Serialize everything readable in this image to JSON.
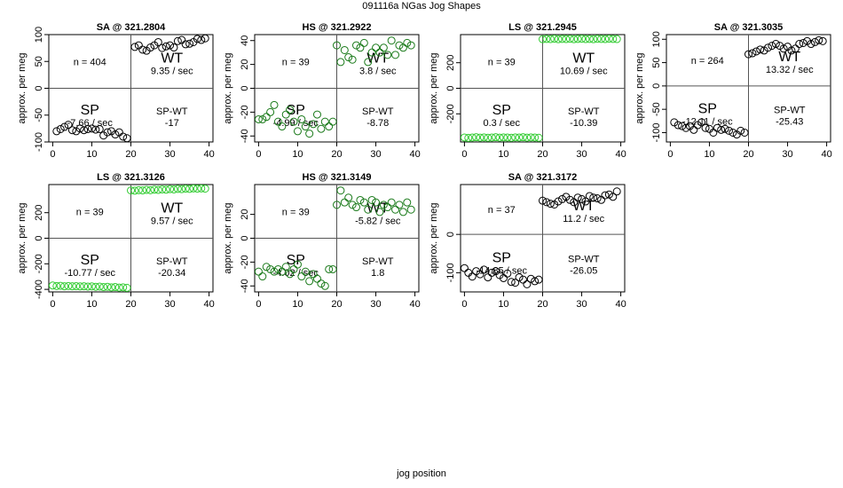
{
  "figure": {
    "title": "091116a   NGas Jog Shapes",
    "xlabel": "jog position",
    "ylabel": "approx. per meg",
    "quadrant_labels": {
      "sp": "SP",
      "wt": "WT",
      "diff": "SP-WT"
    }
  },
  "chart_data": [
    {
      "type": "scatter",
      "title": "SA @ 321.2804",
      "n_label": "n = 404",
      "wt_rate": "9.35 / sec",
      "sp_rate": "-7.66 / sec",
      "diff": "-17",
      "xlim": [
        -1,
        41
      ],
      "ylim": [
        -100,
        100
      ],
      "xticks": [
        0,
        10,
        20,
        30,
        40
      ],
      "yticks": [
        -100,
        -50,
        0,
        50,
        100
      ],
      "color": "#000000",
      "points": [
        [
          1,
          -80
        ],
        [
          2,
          -76
        ],
        [
          3,
          -72
        ],
        [
          4,
          -68
        ],
        [
          5,
          -78
        ],
        [
          6,
          -80
        ],
        [
          7,
          -75
        ],
        [
          8,
          -78
        ],
        [
          9,
          -76
        ],
        [
          10,
          -75
        ],
        [
          11,
          -77
        ],
        [
          12,
          -76
        ],
        [
          13,
          -88
        ],
        [
          14,
          -82
        ],
        [
          15,
          -80
        ],
        [
          16,
          -86
        ],
        [
          17,
          -82
        ],
        [
          18,
          -90
        ],
        [
          19,
          -93
        ],
        [
          21,
          77
        ],
        [
          22,
          80
        ],
        [
          23,
          72
        ],
        [
          24,
          70
        ],
        [
          25,
          76
        ],
        [
          26,
          80
        ],
        [
          27,
          86
        ],
        [
          28,
          75
        ],
        [
          29,
          78
        ],
        [
          30,
          80
        ],
        [
          31,
          76
        ],
        [
          32,
          88
        ],
        [
          33,
          90
        ],
        [
          34,
          82
        ],
        [
          35,
          83
        ],
        [
          36,
          86
        ],
        [
          37,
          92
        ],
        [
          38,
          90
        ],
        [
          39,
          93
        ]
      ]
    },
    {
      "type": "scatter",
      "title": "HS @ 321.2922",
      "n_label": "n = 39",
      "wt_rate": "3.8 / sec",
      "sp_rate": "-4.99 / sec",
      "diff": "-8.78",
      "xlim": [
        -1,
        41
      ],
      "ylim": [
        -45,
        45
      ],
      "xticks": [
        0,
        10,
        20,
        30,
        40
      ],
      "yticks": [
        -40,
        -20,
        0,
        20,
        40
      ],
      "color": "#1a7a1a",
      "points": [
        [
          0,
          -26
        ],
        [
          1,
          -26
        ],
        [
          2,
          -24
        ],
        [
          3,
          -20
        ],
        [
          4,
          -14
        ],
        [
          5,
          -28
        ],
        [
          6,
          -32
        ],
        [
          7,
          -22
        ],
        [
          8,
          -18
        ],
        [
          9,
          -28
        ],
        [
          10,
          -36
        ],
        [
          11,
          -26
        ],
        [
          12,
          -32
        ],
        [
          13,
          -38
        ],
        [
          14,
          -30
        ],
        [
          15,
          -22
        ],
        [
          16,
          -34
        ],
        [
          17,
          -28
        ],
        [
          18,
          -32
        ],
        [
          19,
          -28
        ],
        [
          20,
          36
        ],
        [
          21,
          22
        ],
        [
          22,
          32
        ],
        [
          23,
          26
        ],
        [
          24,
          24
        ],
        [
          25,
          36
        ],
        [
          26,
          34
        ],
        [
          27,
          38
        ],
        [
          28,
          22
        ],
        [
          29,
          30
        ],
        [
          30,
          34
        ],
        [
          31,
          30
        ],
        [
          32,
          34
        ],
        [
          33,
          28
        ],
        [
          34,
          40
        ],
        [
          35,
          28
        ],
        [
          36,
          36
        ],
        [
          37,
          34
        ],
        [
          38,
          38
        ],
        [
          39,
          36
        ]
      ]
    },
    {
      "type": "scatter",
      "title": "LS @ 321.2945",
      "n_label": "n = 39",
      "wt_rate": "10.69 / sec",
      "sp_rate": "0.3 / sec",
      "diff": "-10.39",
      "xlim": [
        -1,
        41
      ],
      "ylim": [
        -420,
        420
      ],
      "xticks": [
        0,
        10,
        20,
        30,
        40
      ],
      "yticks": [
        -200,
        0,
        200
      ],
      "color": "#33cc33",
      "points": [
        [
          0,
          -385
        ],
        [
          1,
          -388
        ],
        [
          2,
          -385
        ],
        [
          3,
          -383
        ],
        [
          4,
          -386
        ],
        [
          5,
          -384
        ],
        [
          6,
          -387
        ],
        [
          7,
          -385
        ],
        [
          8,
          -383
        ],
        [
          9,
          -386
        ],
        [
          10,
          -384
        ],
        [
          11,
          -385
        ],
        [
          12,
          -387
        ],
        [
          13,
          -384
        ],
        [
          14,
          -385
        ],
        [
          15,
          -383
        ],
        [
          16,
          -386
        ],
        [
          17,
          -384
        ],
        [
          18,
          -385
        ],
        [
          19,
          -387
        ],
        [
          20,
          384
        ],
        [
          21,
          386
        ],
        [
          22,
          385
        ],
        [
          23,
          388
        ],
        [
          24,
          384
        ],
        [
          25,
          386
        ],
        [
          26,
          385
        ],
        [
          27,
          387
        ],
        [
          28,
          384
        ],
        [
          29,
          386
        ],
        [
          30,
          388
        ],
        [
          31,
          385
        ],
        [
          32,
          386
        ],
        [
          33,
          384
        ],
        [
          34,
          387
        ],
        [
          35,
          386
        ],
        [
          36,
          385
        ],
        [
          37,
          388
        ],
        [
          38,
          386
        ],
        [
          39,
          385
        ]
      ]
    },
    {
      "type": "scatter",
      "title": "SA @ 321.3035",
      "n_label": "n = 264",
      "wt_rate": "13.32 / sec",
      "sp_rate": "-12.11 / sec",
      "diff": "-25.43",
      "xlim": [
        -1,
        41
      ],
      "ylim": [
        -120,
        110
      ],
      "xticks": [
        0,
        10,
        20,
        30,
        40
      ],
      "yticks": [
        -100,
        -50,
        0,
        50,
        100
      ],
      "color": "#000000",
      "points": [
        [
          1,
          -78
        ],
        [
          2,
          -84
        ],
        [
          3,
          -86
        ],
        [
          4,
          -90
        ],
        [
          5,
          -86
        ],
        [
          6,
          -94
        ],
        [
          7,
          -84
        ],
        [
          8,
          -78
        ],
        [
          9,
          -90
        ],
        [
          10,
          -92
        ],
        [
          11,
          -100
        ],
        [
          12,
          -90
        ],
        [
          13,
          -94
        ],
        [
          14,
          -92
        ],
        [
          15,
          -96
        ],
        [
          16,
          -100
        ],
        [
          17,
          -104
        ],
        [
          18,
          -96
        ],
        [
          19,
          -100
        ],
        [
          20,
          68
        ],
        [
          21,
          70
        ],
        [
          22,
          74
        ],
        [
          23,
          78
        ],
        [
          24,
          76
        ],
        [
          25,
          82
        ],
        [
          26,
          86
        ],
        [
          27,
          90
        ],
        [
          28,
          86
        ],
        [
          29,
          80
        ],
        [
          30,
          84
        ],
        [
          31,
          76
        ],
        [
          32,
          80
        ],
        [
          33,
          90
        ],
        [
          34,
          92
        ],
        [
          35,
          96
        ],
        [
          36,
          90
        ],
        [
          37,
          94
        ],
        [
          38,
          98
        ],
        [
          39,
          96
        ]
      ]
    },
    {
      "type": "scatter",
      "title": "LS @ 321.3126",
      "n_label": "n = 39",
      "wt_rate": "9.57 / sec",
      "sp_rate": "-10.77 / sec",
      "diff": "-20.34",
      "xlim": [
        -1,
        41
      ],
      "ylim": [
        -420,
        420
      ],
      "xticks": [
        0,
        10,
        20,
        30,
        40
      ],
      "yticks": [
        -400,
        -200,
        0,
        200
      ],
      "color": "#33cc33",
      "points": [
        [
          0,
          -370
        ],
        [
          1,
          -374
        ],
        [
          2,
          -372
        ],
        [
          3,
          -376
        ],
        [
          4,
          -374
        ],
        [
          5,
          -376
        ],
        [
          6,
          -375
        ],
        [
          7,
          -377
        ],
        [
          8,
          -376
        ],
        [
          9,
          -378
        ],
        [
          10,
          -377
        ],
        [
          11,
          -380
        ],
        [
          12,
          -378
        ],
        [
          13,
          -382
        ],
        [
          14,
          -380
        ],
        [
          15,
          -384
        ],
        [
          16,
          -382
        ],
        [
          17,
          -386
        ],
        [
          18,
          -384
        ],
        [
          19,
          -388
        ],
        [
          20,
          374
        ],
        [
          21,
          372
        ],
        [
          22,
          376
        ],
        [
          23,
          374
        ],
        [
          24,
          378
        ],
        [
          25,
          376
        ],
        [
          26,
          380
        ],
        [
          27,
          378
        ],
        [
          28,
          382
        ],
        [
          29,
          380
        ],
        [
          30,
          384
        ],
        [
          31,
          382
        ],
        [
          32,
          386
        ],
        [
          33,
          384
        ],
        [
          34,
          388
        ],
        [
          35,
          386
        ],
        [
          36,
          390
        ],
        [
          37,
          388
        ],
        [
          38,
          390
        ],
        [
          39,
          388
        ]
      ]
    },
    {
      "type": "scatter",
      "title": "HS @ 321.3149",
      "n_label": "n = 39",
      "wt_rate": "-5.82 / sec",
      "sp_rate": "-4.02 / sec",
      "diff": "1.8",
      "xlim": [
        -1,
        41
      ],
      "ylim": [
        -45,
        45
      ],
      "xticks": [
        0,
        10,
        20,
        30,
        40
      ],
      "yticks": [
        -40,
        -20,
        0,
        20
      ],
      "color": "#1a7a1a",
      "points": [
        [
          0,
          -28
        ],
        [
          1,
          -32
        ],
        [
          2,
          -24
        ],
        [
          3,
          -26
        ],
        [
          4,
          -28
        ],
        [
          5,
          -26
        ],
        [
          6,
          -28
        ],
        [
          7,
          -24
        ],
        [
          8,
          -30
        ],
        [
          9,
          -26
        ],
        [
          10,
          -22
        ],
        [
          11,
          -32
        ],
        [
          12,
          -28
        ],
        [
          13,
          -36
        ],
        [
          14,
          -30
        ],
        [
          15,
          -34
        ],
        [
          16,
          -38
        ],
        [
          17,
          -40
        ],
        [
          18,
          -26
        ],
        [
          19,
          -26
        ],
        [
          20,
          28
        ],
        [
          21,
          40
        ],
        [
          22,
          30
        ],
        [
          23,
          34
        ],
        [
          24,
          28
        ],
        [
          25,
          26
        ],
        [
          26,
          32
        ],
        [
          27,
          30
        ],
        [
          28,
          24
        ],
        [
          29,
          32
        ],
        [
          30,
          30
        ],
        [
          31,
          22
        ],
        [
          32,
          28
        ],
        [
          33,
          26
        ],
        [
          34,
          30
        ],
        [
          35,
          24
        ],
        [
          36,
          28
        ],
        [
          37,
          22
        ],
        [
          38,
          30
        ],
        [
          39,
          24
        ]
      ]
    },
    {
      "type": "scatter",
      "title": "SA @ 321.3172",
      "n_label": "n = 37",
      "wt_rate": "11.2 / sec",
      "sp_rate": "-14.85 / sec",
      "diff": "-26.05",
      "xlim": [
        -1,
        41
      ],
      "ylim": [
        -150,
        130
      ],
      "xticks": [
        0,
        10,
        20,
        30,
        40
      ],
      "yticks": [
        -100,
        0
      ],
      "color": "#000000",
      "points": [
        [
          0,
          -88
        ],
        [
          1,
          -100
        ],
        [
          2,
          -110
        ],
        [
          3,
          -96
        ],
        [
          4,
          -104
        ],
        [
          5,
          -92
        ],
        [
          6,
          -112
        ],
        [
          7,
          -100
        ],
        [
          8,
          -96
        ],
        [
          9,
          -106
        ],
        [
          10,
          -114
        ],
        [
          11,
          -102
        ],
        [
          12,
          -124
        ],
        [
          13,
          -126
        ],
        [
          14,
          -112
        ],
        [
          15,
          -118
        ],
        [
          16,
          -130
        ],
        [
          17,
          -116
        ],
        [
          18,
          -122
        ],
        [
          19,
          -118
        ],
        [
          20,
          88
        ],
        [
          21,
          84
        ],
        [
          22,
          80
        ],
        [
          23,
          78
        ],
        [
          24,
          86
        ],
        [
          25,
          92
        ],
        [
          26,
          98
        ],
        [
          27,
          90
        ],
        [
          28,
          84
        ],
        [
          29,
          96
        ],
        [
          30,
          92
        ],
        [
          31,
          86
        ],
        [
          32,
          100
        ],
        [
          33,
          96
        ],
        [
          34,
          94
        ],
        [
          35,
          90
        ],
        [
          36,
          102
        ],
        [
          37,
          104
        ],
        [
          38,
          98
        ],
        [
          39,
          112
        ]
      ]
    }
  ]
}
